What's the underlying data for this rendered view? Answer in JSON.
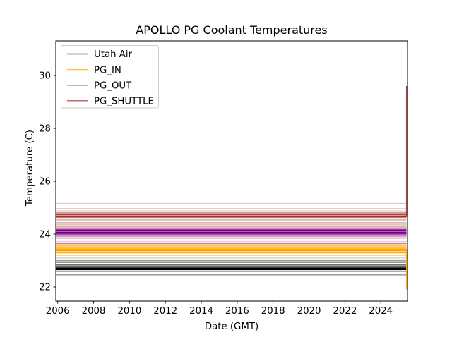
{
  "chart_data": {
    "type": "line",
    "title": "APOLLO PG Coolant Temperatures",
    "xlabel": "Date (GMT)",
    "ylabel": "Temperature (C)",
    "x_ticks": [
      2006,
      2008,
      2010,
      2012,
      2014,
      2016,
      2018,
      2020,
      2022,
      2024
    ],
    "x_tick_labels": [
      "2006",
      "2008",
      "2010",
      "2012",
      "2014",
      "2016",
      "2018",
      "2020",
      "2022",
      "2024"
    ],
    "y_ticks": [
      22,
      24,
      26,
      28,
      30
    ],
    "y_tick_labels": [
      "22",
      "24",
      "26",
      "28",
      "30"
    ],
    "x_range": [
      2005.9,
      2025.5
    ],
    "y_range": [
      21.5,
      31.3
    ],
    "grid": false,
    "legend_position": "upper left",
    "note": "Each series is a bundle of near-constant horizontal traces drawn with transparency; values below are [temperature_C, opacity, stroke_width]",
    "series": [
      {
        "name": "Utah Air",
        "color": "#000000",
        "legend_color": "#4d4d4d",
        "lines": [
          [
            23.4,
            0.3,
            1
          ],
          [
            23.12,
            0.3,
            1
          ],
          [
            23.05,
            0.4,
            1
          ],
          [
            22.99,
            0.5,
            1.2
          ],
          [
            22.93,
            0.55,
            1.2
          ],
          [
            22.83,
            0.75,
            1.3
          ],
          [
            22.77,
            0.95,
            1.6
          ],
          [
            22.71,
            1.0,
            2.2
          ],
          [
            22.66,
            1.0,
            1.8
          ],
          [
            22.59,
            0.65,
            1.3
          ],
          [
            22.46,
            0.5,
            1
          ],
          [
            22.42,
            0.35,
            1
          ]
        ]
      },
      {
        "name": "PG_IN",
        "color": "#ffa500",
        "legend_color": "#ffc04d",
        "lines": [
          [
            24.35,
            0.45,
            0.9
          ],
          [
            23.93,
            0.55,
            0.9
          ],
          [
            23.84,
            0.45,
            0.9
          ],
          [
            23.62,
            0.55,
            1.2
          ],
          [
            23.55,
            0.75,
            1.4
          ],
          [
            23.49,
            0.95,
            1.8
          ],
          [
            23.43,
            1.0,
            2.2
          ],
          [
            23.37,
            1.0,
            1.8
          ],
          [
            23.29,
            0.85,
            1.4
          ],
          [
            23.19,
            0.45,
            1.2
          ],
          [
            23.08,
            0.25,
            1
          ]
        ],
        "end_spike": {
          "year": 2025.4,
          "value": 21.9,
          "from": 23.43
        }
      },
      {
        "name": "PG_OUT",
        "color": "#800080",
        "legend_color": "#a64da6",
        "lines": [
          [
            24.3,
            0.3,
            1
          ],
          [
            24.24,
            0.45,
            1.2
          ],
          [
            24.18,
            0.8,
            1.5
          ],
          [
            24.13,
            1.0,
            2.2
          ],
          [
            24.06,
            1.0,
            2.2
          ],
          [
            24.01,
            0.9,
            1.6
          ],
          [
            23.97,
            0.6,
            1.3
          ],
          [
            23.9,
            0.4,
            1.2
          ],
          [
            23.84,
            0.3,
            1
          ],
          [
            23.77,
            0.28,
            1
          ],
          [
            23.71,
            0.3,
            1
          ],
          [
            23.65,
            0.55,
            1.2
          ]
        ]
      },
      {
        "name": "PG_SHUTTLE",
        "color": "#a52a2a",
        "legend_color": "#c06a6a",
        "lines": [
          [
            25.16,
            0.28,
            1.2
          ],
          [
            24.96,
            0.4,
            1.2
          ],
          [
            24.88,
            0.3,
            1
          ],
          [
            24.8,
            0.75,
            1.3
          ],
          [
            24.73,
            0.9,
            1.8
          ],
          [
            24.65,
            1.0,
            2.0
          ],
          [
            24.57,
            0.85,
            1.6
          ],
          [
            24.5,
            0.6,
            1.4
          ],
          [
            24.43,
            0.5,
            1.2
          ],
          [
            24.35,
            0.3,
            1
          ],
          [
            24.29,
            0.45,
            1.2
          ]
        ],
        "end_spike": {
          "year": 2025.4,
          "value": 29.6,
          "from": 24.65
        }
      }
    ]
  }
}
